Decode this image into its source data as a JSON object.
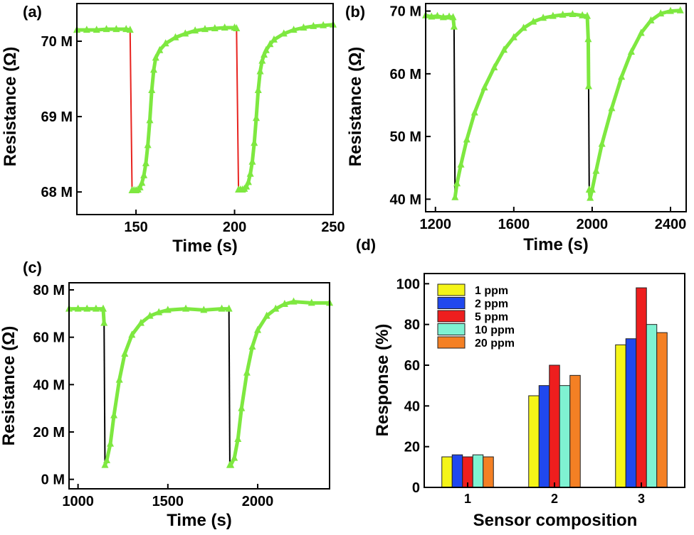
{
  "chart_data": [
    {
      "panel": "(a)",
      "type": "line",
      "xlabel": "Time (s)",
      "ylabel": "Resistance (Ω)",
      "xlim": [
        120,
        250
      ],
      "ylim": [
        67.7,
        70.5
      ],
      "xticks": [
        150,
        200,
        250
      ],
      "xtick_labels": [
        "150",
        "200",
        "250"
      ],
      "yticks": [
        68,
        69,
        70
      ],
      "ytick_labels": [
        "68 M",
        "69 M",
        "70 M"
      ],
      "series": [
        {
          "color": "#7ee840",
          "marker": "triangle",
          "x": [
            120,
            125,
            130,
            135,
            140,
            145,
            147,
            148,
            149,
            150,
            151,
            152,
            153,
            154,
            155,
            156,
            157,
            158,
            159,
            160,
            162,
            165,
            170,
            175,
            180,
            185,
            190,
            195,
            200,
            201,
            202,
            203,
            204,
            205,
            206,
            207,
            208,
            209,
            210,
            211,
            212,
            213,
            214,
            215,
            216,
            218,
            220,
            225,
            230,
            235,
            240,
            245,
            250
          ],
          "y": [
            70.15,
            70.15,
            70.15,
            70.16,
            70.16,
            70.16,
            70.15,
            68.02,
            68.02,
            68.02,
            68.03,
            68.06,
            68.12,
            68.22,
            68.38,
            68.62,
            68.95,
            69.35,
            69.62,
            69.78,
            69.88,
            69.97,
            70.05,
            70.1,
            70.14,
            70.16,
            70.17,
            70.18,
            70.18,
            70.17,
            68.03,
            68.03,
            68.03,
            68.04,
            68.07,
            68.13,
            68.24,
            68.4,
            68.65,
            68.98,
            69.35,
            69.6,
            69.74,
            69.82,
            69.88,
            69.96,
            70.02,
            70.1,
            70.15,
            70.18,
            70.2,
            70.21,
            70.22
          ]
        }
      ]
    },
    {
      "panel": "(b)",
      "type": "line",
      "xlabel": "Time (s)",
      "ylabel": "Resistance (Ω)",
      "xlim": [
        1150,
        2480
      ],
      "ylim": [
        38,
        71.2
      ],
      "xticks": [
        1200,
        1600,
        2000,
        2400
      ],
      "xtick_labels": [
        "1200",
        "1600",
        "2000",
        "2400"
      ],
      "yticks": [
        40,
        50,
        60,
        70
      ],
      "ytick_labels": [
        "40 M",
        "50 M",
        "60 M",
        "70 M"
      ],
      "series": [
        {
          "color": "#7ee840",
          "marker": "triangle",
          "x": [
            1150,
            1180,
            1210,
            1240,
            1270,
            1290,
            1295,
            1300,
            1310,
            1330,
            1360,
            1400,
            1450,
            1500,
            1550,
            1600,
            1650,
            1700,
            1750,
            1800,
            1850,
            1900,
            1950,
            1975,
            1980,
            1982,
            1985,
            1990,
            2000,
            2020,
            2050,
            2100,
            2150,
            2200,
            2250,
            2300,
            2350,
            2400,
            2450
          ],
          "y": [
            69.3,
            69.1,
            69.2,
            69.0,
            69.1,
            69.0,
            67.5,
            40.3,
            42.5,
            45.5,
            49.5,
            53.8,
            57.8,
            61.0,
            63.8,
            65.8,
            67.3,
            68.3,
            68.9,
            69.2,
            69.4,
            69.5,
            69.3,
            69.2,
            65.5,
            58.0,
            41.5,
            40.2,
            41.5,
            44.5,
            48.8,
            54.5,
            59.5,
            63.5,
            66.5,
            68.5,
            69.6,
            70.0,
            70.1
          ]
        }
      ]
    },
    {
      "panel": "(c)",
      "type": "line",
      "xlabel": "Time (s)",
      "ylabel": "Resistance (Ω)",
      "xlim": [
        950,
        2400
      ],
      "ylim": [
        -4,
        83
      ],
      "xticks": [
        1000,
        1500,
        2000
      ],
      "xtick_labels": [
        "1000",
        "1500",
        "2000"
      ],
      "yticks": [
        0,
        20,
        40,
        60,
        80
      ],
      "ytick_labels": [
        "0 M",
        "20 M",
        "40 M",
        "60 M",
        "80 M"
      ],
      "series": [
        {
          "color": "#7ee840",
          "marker": "triangle",
          "x": [
            950,
            1000,
            1050,
            1100,
            1140,
            1145,
            1150,
            1160,
            1180,
            1200,
            1230,
            1260,
            1300,
            1350,
            1400,
            1450,
            1500,
            1600,
            1700,
            1800,
            1840,
            1845,
            1850,
            1870,
            1890,
            1910,
            1940,
            1970,
            2000,
            2050,
            2100,
            2150,
            2200,
            2300,
            2400
          ],
          "y": [
            72,
            72,
            72,
            72,
            72,
            66,
            6,
            8,
            15,
            27,
            42,
            53,
            61,
            66,
            69,
            70.5,
            71.5,
            72,
            71.5,
            72,
            72,
            6,
            6,
            9,
            17,
            30,
            45,
            56,
            63,
            69,
            72,
            74,
            75,
            74.5,
            74.5
          ]
        }
      ]
    },
    {
      "panel": "(d)",
      "type": "bar",
      "xlabel": "Sensor composition",
      "ylabel": "Response (%)",
      "ylim": [
        0,
        105
      ],
      "yticks": [
        0,
        20,
        40,
        60,
        80,
        100
      ],
      "ytick_labels": [
        "0",
        "20",
        "40",
        "60",
        "80",
        "100"
      ],
      "categories": [
        "1",
        "2",
        "3"
      ],
      "legend_position": "top-left",
      "series": [
        {
          "name": "1 ppm",
          "color": "#f5f518",
          "values": [
            15,
            45,
            70
          ]
        },
        {
          "name": "2 ppm",
          "color": "#2048ee",
          "values": [
            16,
            50,
            73
          ]
        },
        {
          "name": "5 ppm",
          "color": "#ee1e1e",
          "values": [
            15,
            60,
            98
          ]
        },
        {
          "name": "10 ppm",
          "color": "#7ff2d2",
          "values": [
            16,
            50,
            80
          ]
        },
        {
          "name": "20 ppm",
          "color": "#f48024",
          "values": [
            15,
            55,
            76
          ]
        }
      ]
    }
  ]
}
